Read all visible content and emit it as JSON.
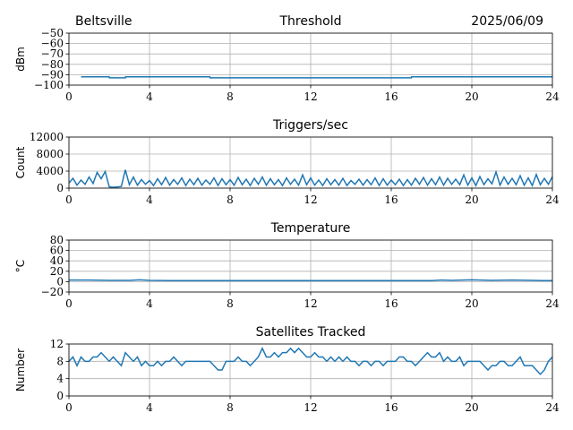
{
  "header": {
    "station": "Beltsville",
    "date": "2025/06/09"
  },
  "colors": {
    "series": "#1f77b4",
    "grid": "#b0b0b0",
    "axis": "#000000"
  },
  "chart_data": [
    {
      "type": "line",
      "title": "Threshold",
      "ylabel": "dBm",
      "xlim": [
        0,
        24
      ],
      "ylim": [
        -100,
        -50
      ],
      "xticks": [
        0,
        4,
        8,
        12,
        16,
        20,
        24
      ],
      "yticks": [
        -100,
        -90,
        -80,
        -70,
        -60,
        -50
      ],
      "ytick_labels": [
        "−100",
        "−90",
        "−80",
        "−70",
        "−60",
        "−50"
      ],
      "grid": true,
      "series": [
        {
          "x": [
            0.6,
            2.0,
            2.01,
            2.8,
            2.81,
            7.0,
            7.01,
            17.0,
            17.01,
            24
          ],
          "values": [
            -92,
            -92,
            -93,
            -93,
            -92,
            -92,
            -93,
            -93,
            -92,
            -92
          ]
        }
      ]
    },
    {
      "type": "line",
      "title": "Triggers/sec",
      "ylabel": "Count",
      "xlim": [
        0,
        24
      ],
      "ylim": [
        0,
        12000
      ],
      "xticks": [
        0,
        4,
        8,
        12,
        16,
        20,
        24
      ],
      "yticks": [
        0,
        4000,
        8000,
        12000
      ],
      "ytick_labels": [
        "0",
        "4000",
        "8000",
        "12000"
      ],
      "grid": true,
      "series": [
        {
          "x": [
            0.0,
            0.2,
            0.4,
            0.6,
            0.8,
            1.0,
            1.2,
            1.4,
            1.6,
            1.8,
            2.0,
            2.2,
            2.4,
            2.6,
            2.8,
            3.0,
            3.2,
            3.4,
            3.6,
            3.8,
            4.0,
            4.2,
            4.4,
            4.6,
            4.8,
            5.0,
            5.2,
            5.4,
            5.6,
            5.8,
            6.0,
            6.2,
            6.4,
            6.6,
            6.8,
            7.0,
            7.2,
            7.4,
            7.6,
            7.8,
            8.0,
            8.2,
            8.4,
            8.6,
            8.8,
            9.0,
            9.2,
            9.4,
            9.6,
            9.8,
            10.0,
            10.2,
            10.4,
            10.6,
            10.8,
            11.0,
            11.2,
            11.4,
            11.6,
            11.8,
            12.0,
            12.2,
            12.4,
            12.6,
            12.8,
            13.0,
            13.2,
            13.4,
            13.6,
            13.8,
            14.0,
            14.2,
            14.4,
            14.6,
            14.8,
            15.0,
            15.2,
            15.4,
            15.6,
            15.8,
            16.0,
            16.2,
            16.4,
            16.6,
            16.8,
            17.0,
            17.2,
            17.4,
            17.6,
            17.8,
            18.0,
            18.2,
            18.4,
            18.6,
            18.8,
            19.0,
            19.2,
            19.4,
            19.6,
            19.8,
            20.0,
            20.2,
            20.4,
            20.6,
            20.8,
            21.0,
            21.2,
            21.4,
            21.6,
            21.8,
            22.0,
            22.2,
            22.4,
            22.6,
            22.8,
            23.0,
            23.2,
            23.4,
            23.6,
            23.8,
            24.0
          ],
          "values": [
            1200,
            2300,
            700,
            1900,
            900,
            2600,
            1100,
            3700,
            2200,
            3900,
            300,
            200,
            250,
            400,
            4300,
            800,
            2600,
            700,
            2000,
            900,
            1800,
            600,
            2200,
            800,
            2500,
            700,
            2000,
            900,
            2400,
            600,
            2100,
            800,
            2300,
            700,
            1900,
            900,
            2400,
            600,
            2200,
            800,
            2000,
            700,
            2500,
            800,
            2100,
            600,
            2300,
            900,
            2600,
            700,
            2200,
            800,
            2000,
            600,
            2400,
            900,
            2100,
            700,
            3100,
            800,
            2400,
            700,
            1900,
            600,
            2200,
            800,
            2000,
            700,
            2300,
            600,
            1800,
            900,
            2100,
            700,
            2000,
            800,
            2400,
            600,
            2200,
            700,
            1900,
            800,
            2100,
            600,
            2000,
            700,
            2300,
            900,
            2500,
            700,
            2200,
            800,
            2600,
            700,
            2300,
            900,
            2100,
            800,
            3100,
            700,
            2400,
            600,
            2700,
            800,
            2200,
            1000,
            3800,
            700,
            2600,
            900,
            2300,
            800,
            2900,
            700,
            2400,
            600,
            3200,
            800,
            2300,
            900,
            2700
          ]
        }
      ]
    },
    {
      "type": "line",
      "title": "Temperature",
      "ylabel": "°C",
      "xlim": [
        0,
        24
      ],
      "ylim": [
        -20,
        80
      ],
      "xticks": [
        0,
        4,
        8,
        12,
        16,
        20,
        24
      ],
      "yticks": [
        -20,
        0,
        20,
        40,
        60,
        80
      ],
      "ytick_labels": [
        "−20",
        "0",
        "20",
        "40",
        "60",
        "80"
      ],
      "grid": true,
      "series": [
        {
          "x": [
            0,
            1,
            2,
            3,
            3.5,
            4,
            5,
            6,
            8,
            10,
            12,
            14,
            16,
            18,
            18.5,
            19,
            20,
            21,
            22,
            23,
            23.5,
            24
          ],
          "values": [
            3,
            3,
            2.5,
            2.5,
            3.5,
            2.5,
            2,
            2,
            2,
            2,
            2,
            2,
            2,
            2,
            3,
            2.5,
            3.5,
            2.5,
            3,
            2.5,
            2,
            2
          ]
        }
      ]
    },
    {
      "type": "line",
      "title": "Satellites Tracked",
      "ylabel": "Number",
      "xlim": [
        0,
        24
      ],
      "ylim": [
        0,
        12
      ],
      "xticks": [
        0,
        4,
        8,
        12,
        16,
        20,
        24
      ],
      "yticks": [
        0,
        4,
        8,
        12
      ],
      "ytick_labels": [
        "0",
        "4",
        "8",
        "12"
      ],
      "grid": true,
      "series": [
        {
          "x": [
            0.0,
            0.2,
            0.4,
            0.6,
            0.8,
            1.0,
            1.2,
            1.4,
            1.6,
            1.8,
            2.0,
            2.2,
            2.4,
            2.6,
            2.8,
            3.0,
            3.2,
            3.4,
            3.6,
            3.8,
            4.0,
            4.2,
            4.4,
            4.6,
            4.8,
            5.0,
            5.2,
            5.4,
            5.6,
            5.8,
            6.0,
            6.2,
            6.4,
            6.6,
            6.8,
            7.0,
            7.2,
            7.4,
            7.6,
            7.8,
            8.0,
            8.2,
            8.4,
            8.6,
            8.8,
            9.0,
            9.2,
            9.4,
            9.6,
            9.8,
            10.0,
            10.2,
            10.4,
            10.6,
            10.8,
            11.0,
            11.2,
            11.4,
            11.6,
            11.8,
            12.0,
            12.2,
            12.4,
            12.6,
            12.8,
            13.0,
            13.2,
            13.4,
            13.6,
            13.8,
            14.0,
            14.2,
            14.4,
            14.6,
            14.8,
            15.0,
            15.2,
            15.4,
            15.6,
            15.8,
            16.0,
            16.2,
            16.4,
            16.6,
            16.8,
            17.0,
            17.2,
            17.4,
            17.6,
            17.8,
            18.0,
            18.2,
            18.4,
            18.6,
            18.8,
            19.0,
            19.2,
            19.4,
            19.6,
            19.8,
            20.0,
            20.2,
            20.4,
            20.6,
            20.8,
            21.0,
            21.2,
            21.4,
            21.6,
            21.8,
            22.0,
            22.2,
            22.4,
            22.6,
            22.8,
            23.0,
            23.2,
            23.4,
            23.6,
            23.8,
            24.0
          ],
          "values": [
            8,
            9,
            7,
            9,
            8,
            8,
            9,
            9,
            10,
            9,
            8,
            9,
            8,
            7,
            10,
            9,
            8,
            9,
            7,
            8,
            7,
            7,
            8,
            7,
            8,
            8,
            9,
            8,
            7,
            8,
            8,
            8,
            8,
            8,
            8,
            8,
            7,
            6,
            6,
            8,
            8,
            8,
            9,
            8,
            8,
            7,
            8,
            9,
            11,
            9,
            9,
            10,
            9,
            10,
            10,
            11,
            10,
            11,
            10,
            9,
            9,
            10,
            9,
            9,
            8,
            9,
            8,
            9,
            8,
            9,
            8,
            8,
            7,
            8,
            8,
            7,
            8,
            8,
            7,
            8,
            8,
            8,
            9,
            9,
            8,
            8,
            7,
            8,
            9,
            10,
            9,
            9,
            10,
            8,
            9,
            8,
            8,
            9,
            7,
            8,
            8,
            8,
            8,
            7,
            6,
            7,
            7,
            8,
            8,
            7,
            7,
            8,
            9,
            7,
            7,
            7,
            6,
            5,
            6,
            8,
            9
          ]
        }
      ]
    }
  ]
}
